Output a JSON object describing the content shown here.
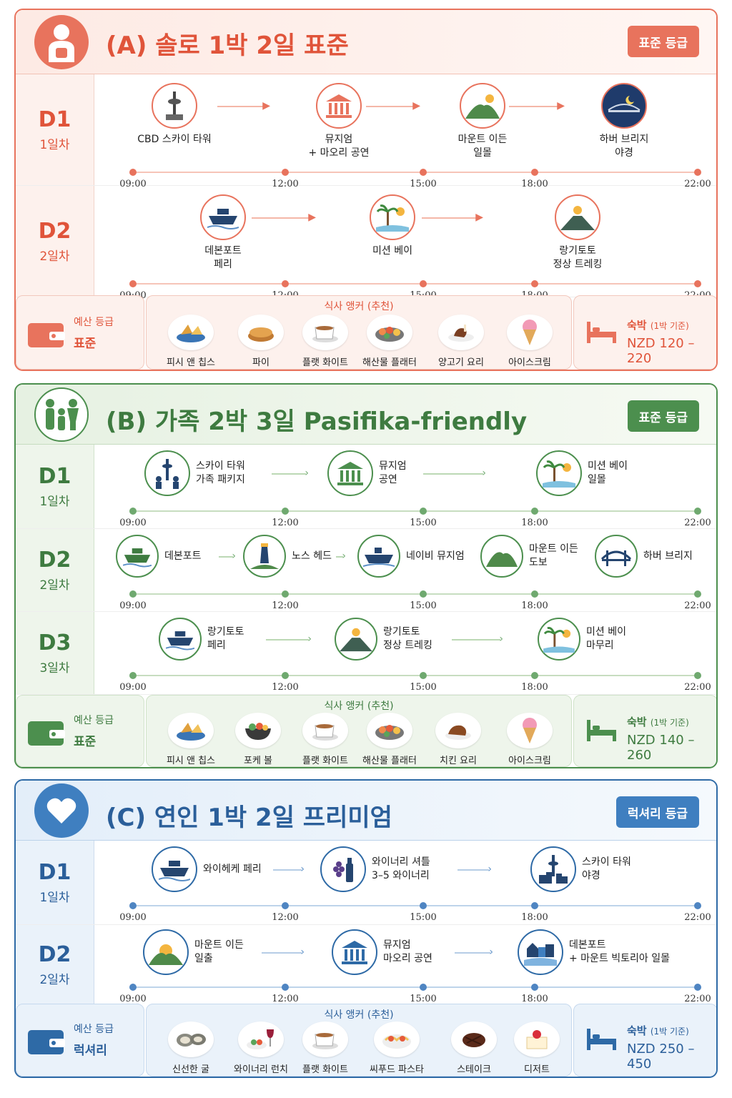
{
  "colors": {
    "plan_a": "#e8735d",
    "plan_b": "#4c8f4e",
    "plan_c": "#2e6aa6"
  },
  "time_ticks": [
    "09:00",
    "12:00",
    "15:00",
    "18:00",
    "22:00"
  ],
  "plans": [
    {
      "title": "(A) 솔로 1박 2일 표준",
      "grade": "표준 등급",
      "avatar_icon": "solo-traveler-icon",
      "days": [
        {
          "code": "D1",
          "sub": "1일차",
          "stops": [
            {
              "icon": "sky-tower-icon",
              "line1": "CBD 스카이 타워",
              "line2": ""
            },
            {
              "icon": "museum-icon",
              "line1": "뮤지엄",
              "line2": "+ 마오리 공연"
            },
            {
              "icon": "mountain-sun-icon",
              "line1": "마운트 이든",
              "line2": "일몰"
            },
            {
              "icon": "harbour-bridge-night-icon",
              "line1": "하버 브리지",
              "line2": "야경"
            }
          ]
        },
        {
          "code": "D2",
          "sub": "2일차",
          "stops": [
            {
              "icon": "ferry-icon",
              "line1": "데본포트",
              "line2": "페리"
            },
            {
              "icon": "palm-beach-icon",
              "line1": "미션 베이",
              "line2": ""
            },
            {
              "icon": "volcano-icon",
              "line1": "랑기토토",
              "line2": "정상 트레킹"
            }
          ]
        }
      ],
      "budget": {
        "label": "예산 등급",
        "value": "표준"
      },
      "meals": {
        "title": "식사 앵커 (추천)",
        "items": [
          {
            "icon": "fish-and-chips-icon",
            "label": "피시 앤 칩스"
          },
          {
            "icon": "pie-icon",
            "label": "파이"
          },
          {
            "icon": "coffee-cup-icon",
            "label": "플랫 화이트"
          },
          {
            "icon": "seafood-platter-icon",
            "label": "해산물 플래터"
          },
          {
            "icon": "lamb-dish-icon",
            "label": "양고기 요리"
          },
          {
            "icon": "ice-cream-icon",
            "label": "아이스크림"
          }
        ]
      },
      "stay": {
        "label": "숙박",
        "note": "(1박 기준)",
        "value": "NZD 120 – 220"
      }
    },
    {
      "title": "(B) 가족 2박 3일 Pasifika-friendly",
      "grade": "표준 등급",
      "avatar_icon": "family-icon",
      "days": [
        {
          "code": "D1",
          "sub": "1일차",
          "stops": [
            {
              "icon": "sky-tower-family-icon",
              "line1": "스카이 타워",
              "line2": "가족 패키지"
            },
            {
              "icon": "museum-icon",
              "line1": "뮤지엄",
              "line2": "공연"
            },
            {
              "icon": "palm-beach-icon",
              "line1": "미션 베이",
              "line2": "일몰"
            }
          ]
        },
        {
          "code": "D2",
          "sub": "2일차",
          "stops": [
            {
              "icon": "ferry-icon",
              "line1": "데본포트",
              "line2": ""
            },
            {
              "icon": "lighthouse-icon",
              "line1": "노스 헤드",
              "line2": ""
            },
            {
              "icon": "navy-ship-icon",
              "line1": "네이비 뮤지엄",
              "line2": ""
            },
            {
              "icon": "mountain-icon",
              "line1": "마운트 이든",
              "line2": "도보"
            },
            {
              "icon": "harbour-bridge-icon",
              "line1": "하버 브리지",
              "line2": ""
            }
          ]
        },
        {
          "code": "D3",
          "sub": "3일차",
          "stops": [
            {
              "icon": "ferry-icon",
              "line1": "랑기토토",
              "line2": "페리"
            },
            {
              "icon": "volcano-icon",
              "line1": "랑기토토",
              "line2": "정상 트레킹"
            },
            {
              "icon": "palm-beach-icon",
              "line1": "미션 베이",
              "line2": "마무리"
            }
          ]
        }
      ],
      "budget": {
        "label": "예산 등급",
        "value": "표준"
      },
      "meals": {
        "title": "식사 앵커 (추천)",
        "items": [
          {
            "icon": "fish-and-chips-icon",
            "label": "피시 앤 칩스"
          },
          {
            "icon": "poke-bowl-icon",
            "label": "포케 볼"
          },
          {
            "icon": "coffee-cup-icon",
            "label": "플랫 화이트"
          },
          {
            "icon": "seafood-platter-icon",
            "label": "해산물 플래터"
          },
          {
            "icon": "chicken-dish-icon",
            "label": "치킨 요리"
          },
          {
            "icon": "ice-cream-icon",
            "label": "아이스크림"
          }
        ]
      },
      "stay": {
        "label": "숙박",
        "note": "(1박 기준)",
        "value": "NZD 140 – 260"
      }
    },
    {
      "title": "(C) 연인 1박 2일 프리미엄",
      "grade": "럭셔리 등급",
      "avatar_icon": "heart-icon",
      "days": [
        {
          "code": "D1",
          "sub": "1일차",
          "stops": [
            {
              "icon": "ferry-icon",
              "line1": "와이헤케 페리",
              "line2": ""
            },
            {
              "icon": "wine-grapes-icon",
              "line1": "와이너리 셔틀",
              "line2": "3–5 와이너리"
            },
            {
              "icon": "sky-tower-city-icon",
              "line1": "스카이 타워",
              "line2": "야경"
            }
          ]
        },
        {
          "code": "D2",
          "sub": "2일차",
          "stops": [
            {
              "icon": "sunrise-mountain-icon",
              "line1": "마운트 이든",
              "line2": "일출"
            },
            {
              "icon": "museum-icon",
              "line1": "뮤지엄",
              "line2": "마오리 공연"
            },
            {
              "icon": "waterfront-town-icon",
              "line1": "데본포트",
              "line2": "+ 마운트 빅토리아 일몰"
            }
          ]
        }
      ],
      "budget": {
        "label": "예산 등급",
        "value": "럭셔리"
      },
      "meals": {
        "title": "식사 앵커 (추천)",
        "items": [
          {
            "icon": "oyster-icon",
            "label": "신선한 굴"
          },
          {
            "icon": "winery-lunch-icon",
            "label": "와이너리 런치"
          },
          {
            "icon": "coffee-cup-icon",
            "label": "플랫 화이트"
          },
          {
            "icon": "seafood-pasta-icon",
            "label": "씨푸드 파스타"
          },
          {
            "icon": "steak-icon",
            "label": "스테이크"
          },
          {
            "icon": "dessert-icon",
            "label": "디저트"
          }
        ]
      },
      "stay": {
        "label": "숙박",
        "note": "(1박 기준)",
        "value": "NZD 250 – 450"
      }
    }
  ]
}
